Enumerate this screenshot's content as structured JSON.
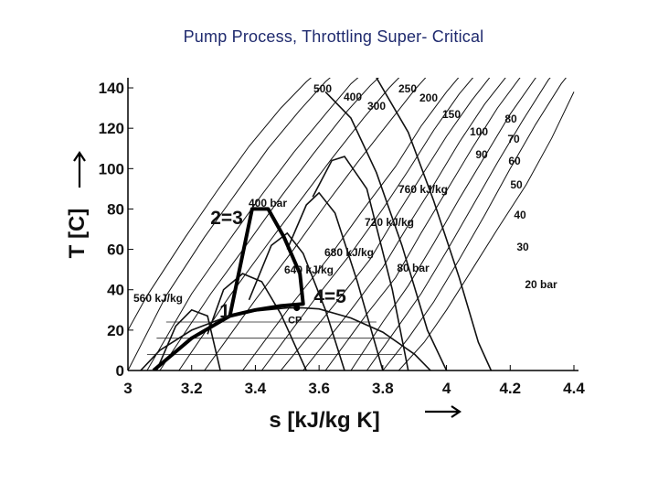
{
  "title": "Pump Process, Throttling Super- Critical",
  "chart_data": {
    "type": "line",
    "xlabel": "s [kJ/kg K]",
    "ylabel": "T [C]",
    "xlim": [
      3.0,
      4.4
    ],
    "ylim": [
      0,
      145
    ],
    "x_ticks": [
      "3",
      "3.2",
      "3.4",
      "3.6",
      "3.8",
      "4",
      "4.2",
      "4.4"
    ],
    "y_ticks": [
      "0",
      "20",
      "40",
      "60",
      "80",
      "100",
      "120",
      "140"
    ],
    "saturation_dome": {
      "x": [
        3.04,
        3.1,
        3.2,
        3.3,
        3.4,
        3.5,
        3.55,
        3.6,
        3.7,
        3.8,
        3.9,
        3.95
      ],
      "y": [
        0,
        10,
        20,
        26,
        29.5,
        31,
        31,
        30.5,
        26,
        19,
        8,
        0
      ]
    },
    "isobars": [
      {
        "name": "20 bar",
        "x": [
          3.85,
          3.93,
          4.0,
          4.08,
          4.16,
          4.25,
          4.33,
          4.4
        ],
        "y": [
          0,
          14,
          30,
          50,
          70,
          92,
          115,
          138
        ]
      },
      {
        "name": "30",
        "x": [
          3.8,
          3.88,
          3.96,
          4.04,
          4.12,
          4.2,
          4.28,
          4.36,
          4.4
        ],
        "y": [
          0,
          16,
          34,
          55,
          77,
          100,
          122,
          142,
          150
        ]
      },
      {
        "name": "40",
        "x": [
          3.75,
          3.84,
          3.92,
          4.0,
          4.08,
          4.16,
          4.24,
          4.32,
          4.38
        ],
        "y": [
          0,
          20,
          38,
          59,
          81,
          103,
          124,
          144,
          155
        ]
      },
      {
        "name": "50",
        "x": [
          3.7,
          3.8,
          3.88,
          3.96,
          4.04,
          4.12,
          4.2,
          4.28,
          4.34
        ],
        "y": [
          0,
          24,
          42,
          63,
          85,
          106,
          127,
          145,
          155
        ]
      },
      {
        "name": "60",
        "x": [
          3.62,
          3.75,
          3.84,
          3.92,
          4.0,
          4.08,
          4.16,
          4.24,
          4.3
        ],
        "y": [
          0,
          28,
          46,
          68,
          89,
          110,
          130,
          147,
          155
        ]
      },
      {
        "name": "70",
        "x": [
          3.55,
          3.7,
          3.8,
          3.88,
          3.96,
          4.04,
          4.12,
          4.2,
          4.26
        ],
        "y": [
          0,
          30,
          51,
          72,
          92,
          113,
          132,
          148,
          155
        ]
      },
      {
        "name": "80 bar",
        "x": [
          3.48,
          3.65,
          3.76,
          3.84,
          3.92,
          4.0,
          4.08,
          4.16,
          4.22
        ],
        "y": [
          0,
          33,
          55,
          76,
          96,
          116,
          134,
          150,
          158
        ]
      },
      {
        "name": "90",
        "x": [
          3.42,
          3.58,
          3.7,
          3.8,
          3.88,
          3.96,
          4.04,
          4.12,
          4.18
        ],
        "y": [
          0,
          34,
          58,
          80,
          99,
          119,
          137,
          152,
          158
        ]
      },
      {
        "name": "100",
        "x": [
          3.36,
          3.52,
          3.64,
          3.74,
          3.84,
          3.92,
          4.0,
          4.08,
          4.14
        ],
        "y": [
          0,
          34,
          58,
          80,
          101,
          121,
          138,
          153,
          160
        ]
      },
      {
        "name": "150",
        "x": [
          3.24,
          3.4,
          3.52,
          3.62,
          3.72,
          3.82,
          3.9,
          3.98,
          4.04
        ],
        "y": [
          0,
          35,
          60,
          82,
          103,
          123,
          139,
          153,
          160
        ]
      },
      {
        "name": "200",
        "x": [
          3.16,
          3.32,
          3.44,
          3.54,
          3.64,
          3.74,
          3.82,
          3.9,
          3.96
        ],
        "y": [
          0,
          37,
          63,
          84,
          105,
          125,
          140,
          153,
          160
        ]
      },
      {
        "name": "250",
        "x": [
          3.1,
          3.26,
          3.38,
          3.48,
          3.58,
          3.68,
          3.76,
          3.84,
          3.9
        ],
        "y": [
          0,
          38,
          64,
          86,
          107,
          127,
          141,
          153,
          160
        ]
      },
      {
        "name": "300",
        "x": [
          3.06,
          3.2,
          3.32,
          3.42,
          3.52,
          3.62,
          3.7,
          3.78,
          3.84
        ],
        "y": [
          0,
          38,
          65,
          87,
          108,
          127,
          142,
          153,
          160
        ]
      },
      {
        "name": "400 bar",
        "x": [
          3.0,
          3.12,
          3.24,
          3.34,
          3.44,
          3.54,
          3.62,
          3.7,
          3.76
        ],
        "y": [
          0,
          37,
          66,
          88,
          110,
          129,
          143,
          154,
          160
        ]
      },
      {
        "name": "500",
        "x": [
          3.0,
          3.06,
          3.18,
          3.28,
          3.38,
          3.48,
          3.56,
          3.64,
          3.7
        ],
        "y": [
          20,
          37,
          66,
          89,
          111,
          130,
          143,
          154,
          160
        ]
      }
    ],
    "isenthalps": [
      {
        "name": "560 kJ/kg",
        "x": [
          3.09,
          3.15,
          3.2,
          3.25,
          3.29
        ],
        "y": [
          0,
          22,
          30,
          27,
          0
        ]
      },
      {
        "name": "640 kJ/kg",
        "x": [
          3.25,
          3.3,
          3.36,
          3.42,
          3.48,
          3.56
        ],
        "y": [
          18,
          40,
          48,
          44,
          28,
          0
        ]
      },
      {
        "name": "680 kJ/kg",
        "x": [
          3.38,
          3.45,
          3.5,
          3.55,
          3.62,
          3.68
        ],
        "y": [
          35,
          62,
          68,
          58,
          30,
          0
        ]
      },
      {
        "name": "720 kJ/kg",
        "x": [
          3.5,
          3.56,
          3.6,
          3.65,
          3.72,
          3.8
        ],
        "y": [
          60,
          82,
          88,
          78,
          44,
          0
        ]
      },
      {
        "name": "760 kJ/kg",
        "x": [
          3.58,
          3.64,
          3.68,
          3.75,
          3.83,
          3.88
        ],
        "y": [
          86,
          104,
          106,
          90,
          40,
          0
        ]
      },
      {
        "name": "",
        "x": [
          3.62,
          3.7,
          3.78,
          3.86,
          3.94,
          4.0
        ],
        "y": [
          138,
          125,
          98,
          62,
          20,
          0
        ]
      },
      {
        "name": "",
        "x": [
          3.78,
          3.88,
          3.96,
          4.04,
          4.1,
          4.14
        ],
        "y": [
          145,
          118,
          84,
          46,
          14,
          0
        ]
      }
    ],
    "process_path": {
      "x": [
        3.08,
        3.2,
        3.32,
        3.4,
        3.48,
        3.55,
        3.54,
        3.49,
        3.44,
        3.39,
        3.32
      ],
      "y": [
        0,
        16,
        27,
        30,
        32,
        33,
        48,
        66,
        80,
        80,
        27
      ]
    },
    "isobar_labels": [
      "500",
      "400",
      "300",
      "250",
      "200",
      "150",
      "100",
      "90",
      "80",
      "70",
      "60",
      "50",
      "40",
      "30",
      "20 bar",
      "400 bar",
      "80 bar"
    ],
    "isenthalp_labels": [
      "760 kJ/kg",
      "720 kJ/kg",
      "680 kJ/kg",
      "640 kJ/kg",
      "560 kJ/kg"
    ],
    "state_points": [
      {
        "label": "1",
        "x": 3.32,
        "y": 27
      },
      {
        "label": "2=3",
        "x": 3.39,
        "y": 80
      },
      {
        "label": "4=5",
        "x": 3.55,
        "y": 33
      }
    ],
    "critical_point": {
      "label": "CP",
      "x": 3.53,
      "y": 31
    }
  }
}
